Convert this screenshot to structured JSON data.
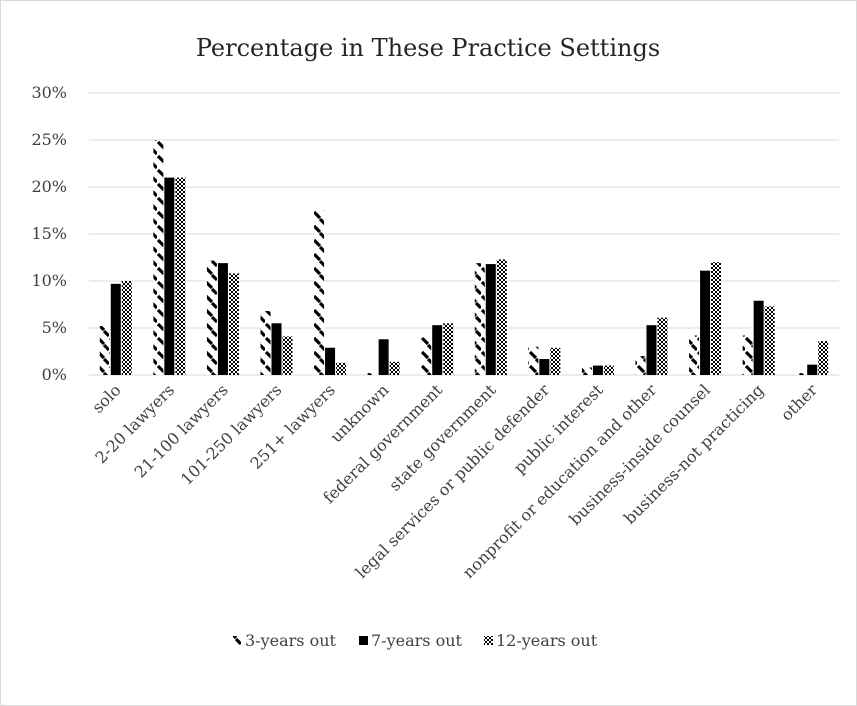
{
  "chart_data": {
    "type": "bar",
    "title": "Percentage in These Practice Settings",
    "xlabel": "",
    "ylabel": "",
    "ylim": [
      0,
      30
    ],
    "y_ticks": [
      "0%",
      "5%",
      "10%",
      "15%",
      "20%",
      "25%",
      "30%"
    ],
    "y_tick_values": [
      0,
      5,
      10,
      15,
      20,
      25,
      30
    ],
    "grid": true,
    "legend_position": "bottom",
    "categories": [
      "solo",
      "2-20 lawyers",
      "21-100 lawyers",
      "101-250 lawyers",
      "251+ lawyers",
      "unknown",
      "federal government",
      "state government",
      "legal services or public defender",
      "public interest",
      "nonprofit or education and other",
      "business-inside counsel",
      "business-not practicing",
      "other"
    ],
    "series": [
      {
        "name": "3-years out",
        "pattern": "dashed-diagonal",
        "color": "#000000",
        "values": [
          5.2,
          25.0,
          12.2,
          6.8,
          17.5,
          0.2,
          4.0,
          11.9,
          3.0,
          0.8,
          2.0,
          4.2,
          4.2,
          0.2
        ]
      },
      {
        "name": "7-years out",
        "pattern": "solid",
        "color": "#000000",
        "values": [
          9.7,
          21.0,
          11.9,
          5.5,
          2.9,
          3.8,
          5.3,
          11.8,
          1.7,
          1.0,
          5.3,
          11.1,
          7.9,
          1.1
        ]
      },
      {
        "name": "12-years out",
        "pattern": "checkerboard",
        "color": "#000000",
        "values": [
          10.0,
          21.0,
          10.8,
          4.1,
          1.3,
          1.4,
          5.5,
          12.3,
          2.9,
          1.0,
          6.1,
          12.0,
          7.3,
          3.6
        ]
      }
    ]
  }
}
